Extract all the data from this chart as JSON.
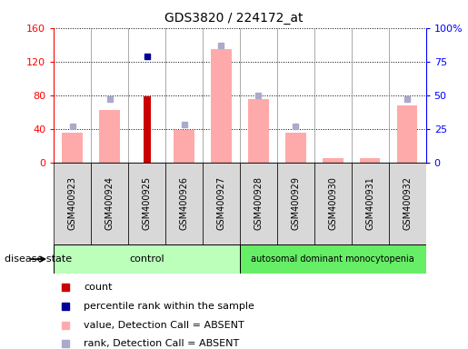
{
  "title": "GDS3820 / 224172_at",
  "samples": [
    "GSM400923",
    "GSM400924",
    "GSM400925",
    "GSM400926",
    "GSM400927",
    "GSM400928",
    "GSM400929",
    "GSM400930",
    "GSM400931",
    "GSM400932"
  ],
  "value_absent": [
    35,
    62,
    null,
    38,
    135,
    75,
    35,
    5,
    5,
    68
  ],
  "rank_absent": [
    27,
    47,
    null,
    28,
    87,
    50,
    27,
    null,
    null,
    47
  ],
  "count": [
    null,
    null,
    78,
    null,
    null,
    null,
    null,
    null,
    null,
    null
  ],
  "percentile_rank": [
    null,
    null,
    79,
    null,
    null,
    null,
    null,
    null,
    null,
    null
  ],
  "ylim_left": [
    0,
    160
  ],
  "ylim_right": [
    0,
    100
  ],
  "yticks_left": [
    0,
    40,
    80,
    120,
    160
  ],
  "yticks_right": [
    0,
    25,
    50,
    75,
    100
  ],
  "ytick_labels_right": [
    "0",
    "25",
    "50",
    "75",
    "100%"
  ],
  "color_count": "#cc0000",
  "color_percentile": "#000099",
  "color_value_absent": "#ffaaaa",
  "color_rank_absent": "#aaaacc",
  "color_control_bg": "#bbffbb",
  "color_disease_bg": "#66ee66",
  "group_label_control": "control",
  "group_label_disease": "autosomal dominant monocytopenia",
  "disease_state_label": "disease state",
  "n_control": 5,
  "n_disease": 5,
  "legend_items": [
    {
      "label": "count",
      "color": "#cc0000"
    },
    {
      "label": "percentile rank within the sample",
      "color": "#000099"
    },
    {
      "label": "value, Detection Call = ABSENT",
      "color": "#ffaaaa"
    },
    {
      "label": "rank, Detection Call = ABSENT",
      "color": "#aaaacc"
    }
  ]
}
